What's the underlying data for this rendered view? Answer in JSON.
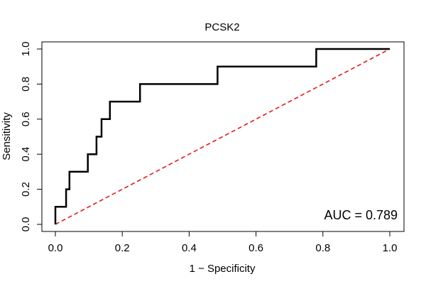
{
  "chart_data": {
    "type": "line",
    "title": "PCSK2",
    "xlabel": "1 − Specificity",
    "ylabel": "Sensitivity",
    "xlim": [
      0,
      1
    ],
    "ylim": [
      0,
      1
    ],
    "x_ticks": [
      "0.0",
      "0.2",
      "0.4",
      "0.6",
      "0.8",
      "1.0"
    ],
    "y_ticks": [
      "0.0",
      "0.2",
      "0.4",
      "0.6",
      "0.8",
      "1.0"
    ],
    "annotation": "AUC = 0.789",
    "series": [
      {
        "color": "#000000",
        "style": "solid",
        "points": [
          [
            0.0,
            0.0
          ],
          [
            0.0,
            0.1
          ],
          [
            0.032,
            0.1
          ],
          [
            0.032,
            0.2
          ],
          [
            0.042,
            0.2
          ],
          [
            0.042,
            0.3
          ],
          [
            0.097,
            0.3
          ],
          [
            0.097,
            0.4
          ],
          [
            0.123,
            0.4
          ],
          [
            0.123,
            0.5
          ],
          [
            0.138,
            0.5
          ],
          [
            0.138,
            0.6
          ],
          [
            0.163,
            0.6
          ],
          [
            0.163,
            0.7
          ],
          [
            0.253,
            0.7
          ],
          [
            0.253,
            0.8
          ],
          [
            0.485,
            0.8
          ],
          [
            0.485,
            0.9
          ],
          [
            0.78,
            0.9
          ],
          [
            0.78,
            1.0
          ],
          [
            1.0,
            1.0
          ]
        ]
      },
      {
        "color": "#e31a1c",
        "style": "dashed",
        "points": [
          [
            0.0,
            0.0
          ],
          [
            1.0,
            1.0
          ]
        ]
      }
    ],
    "grid": false,
    "legend": "none"
  }
}
